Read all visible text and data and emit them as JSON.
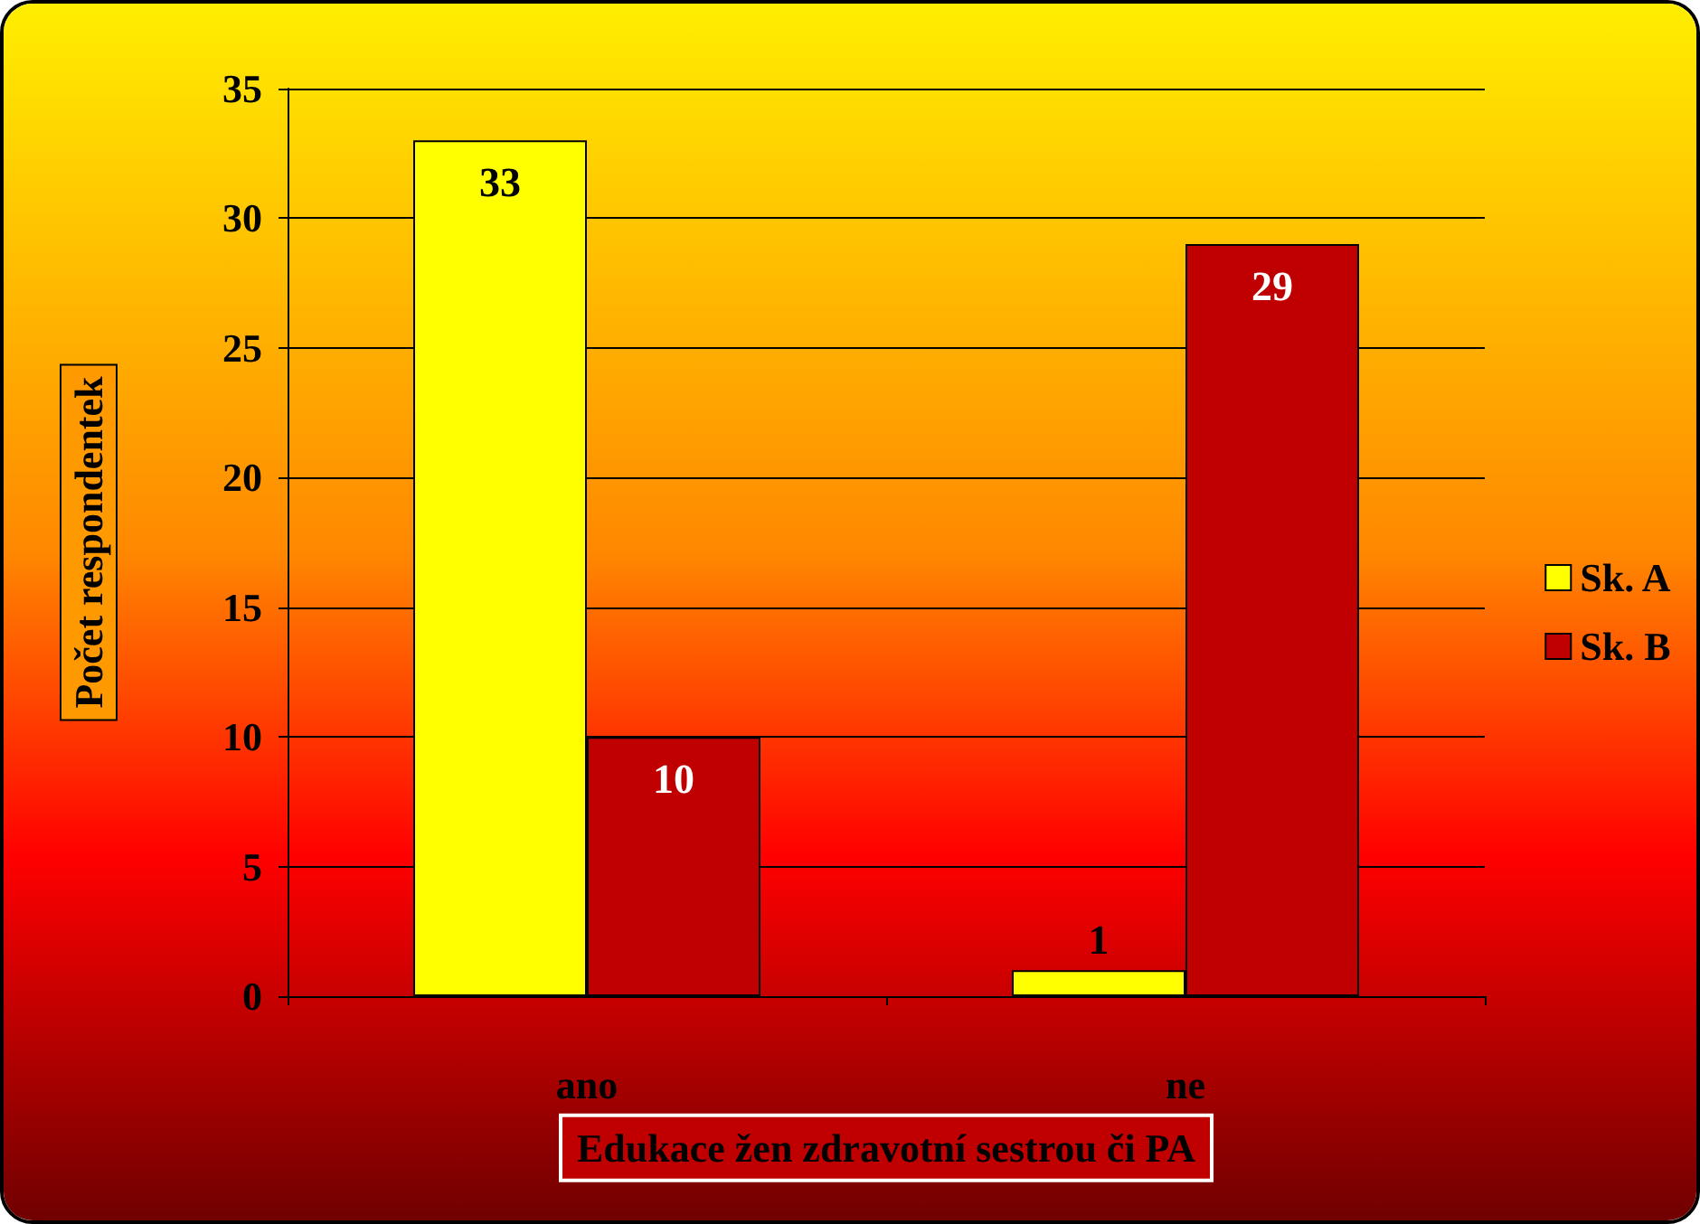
{
  "chart_data": {
    "type": "bar",
    "xlabel": "Edukace žen zdravotní sestrou či PA",
    "ylabel": "Počet respondentek",
    "categories": [
      "ano",
      "ne"
    ],
    "series": [
      {
        "name": "Sk. A",
        "color": "#ffff00",
        "values": [
          33,
          1
        ]
      },
      {
        "name": "Sk. B",
        "color": "#c00000",
        "values": [
          10,
          29
        ]
      }
    ],
    "ylim": [
      0,
      35
    ],
    "yticks": [
      0,
      5,
      10,
      15,
      20,
      25,
      30,
      35
    ],
    "grid": "y",
    "legend": "right",
    "data_labels": true
  }
}
